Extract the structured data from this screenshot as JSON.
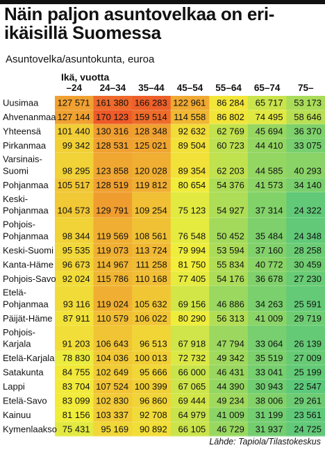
{
  "title": "Näin paljon asuntovelkaa on eri-ikäisillä Suomessa",
  "subtitle": "Asuntovelka/asuntokunta, euroa",
  "source": "Lähde: Tapiola/Tilastokeskus",
  "chart_data": {
    "type": "heatmap",
    "title": "Näin paljon asuntovelkaa on eri-ikäisillä Suomessa",
    "subtitle": "Asuntovelka/asuntokunta, euroa",
    "xlabel": "Ikä, vuotta",
    "columns": [
      "–24",
      "24–34",
      "35–44",
      "45–54",
      "55–64",
      "65–74",
      "75–"
    ],
    "rows": [
      {
        "label": [
          "Uusimaa"
        ],
        "values": [
          "127 571",
          "161 380",
          "166 283",
          "122 961",
          "86 284",
          "65 717",
          "53 173"
        ]
      },
      {
        "label": [
          "Ahvenanmaa"
        ],
        "values": [
          "127 144",
          "170 123",
          "159 514",
          "114 558",
          "86 802",
          "74 495",
          "58 646"
        ]
      },
      {
        "label": [
          "Yhteensä"
        ],
        "values": [
          "101 440",
          "130 316",
          "128 348",
          "92 632",
          "62 769",
          "45 694",
          "36 370"
        ]
      },
      {
        "label": [
          "Pirkanmaa"
        ],
        "values": [
          "99 342",
          "128 531",
          "125 021",
          "89 504",
          "60 723",
          "44 410",
          "33 075"
        ]
      },
      {
        "label": [
          "Varsinais-",
          "Suomi"
        ],
        "values": [
          "98 295",
          "123 858",
          "120 028",
          "89 354",
          "62 203",
          "44 585",
          "40 293"
        ]
      },
      {
        "label": [
          "Pohjanmaa"
        ],
        "values": [
          "105 517",
          "128 519",
          "119 812",
          "80 654",
          "54 376",
          "41 573",
          "34 140"
        ]
      },
      {
        "label": [
          "Keski-",
          "Pohjanmaa"
        ],
        "values": [
          "104 573",
          "129 791",
          "109 254",
          "75 123",
          "54 927",
          "37 314",
          "24 322"
        ]
      },
      {
        "label": [
          "Pohjois-",
          "Pohjanmaa"
        ],
        "values": [
          "98 344",
          "119 569",
          "108 561",
          "76 548",
          "50 452",
          "35 484",
          "24 348"
        ]
      },
      {
        "label": [
          "Keski-Suomi"
        ],
        "values": [
          "95 535",
          "119 073",
          "113 724",
          "79 994",
          "53 594",
          "37 160",
          "28 258"
        ]
      },
      {
        "label": [
          "Kanta-Häme"
        ],
        "values": [
          "96 673",
          "114 967",
          "111 258",
          "81 750",
          "55 834",
          "40 772",
          "30 459"
        ]
      },
      {
        "label": [
          "Pohjois-Savo"
        ],
        "values": [
          "92 024",
          "115 786",
          "110 168",
          "77 405",
          "54 176",
          "36 678",
          "27 230"
        ]
      },
      {
        "label": [
          "Etelä-",
          "Pohjanmaa"
        ],
        "values": [
          "93 116",
          "119 024",
          "105 632",
          "69 156",
          "46 886",
          "34 263",
          "25 591"
        ]
      },
      {
        "label": [
          "Päijät-Häme"
        ],
        "values": [
          "87 911",
          "110 579",
          "106 022",
          "80 290",
          "56 313",
          "41 009",
          "29 719"
        ]
      },
      {
        "label": [
          "Pohjois-",
          "Karjala"
        ],
        "values": [
          "91 203",
          "106 643",
          "96 513",
          "67 918",
          "47 794",
          "33 064",
          "26 139"
        ]
      },
      {
        "label": [
          "Etelä-Karjala"
        ],
        "values": [
          "78 830",
          "104 036",
          "100 013",
          "72 732",
          "49 342",
          "35 519",
          "27 009"
        ]
      },
      {
        "label": [
          "Satakunta"
        ],
        "values": [
          "84 755",
          "102 649",
          "95 666",
          "66 000",
          "46 431",
          "33 041",
          "25 199"
        ]
      },
      {
        "label": [
          "Lappi"
        ],
        "values": [
          "83 704",
          "107 524",
          "100 399",
          "67 065",
          "44 390",
          "30 943",
          "22 547"
        ]
      },
      {
        "label": [
          "Etelä-Savo"
        ],
        "values": [
          "83 099",
          "102 830",
          "96 860",
          "69 444",
          "49 234",
          "38 006",
          "29 261"
        ]
      },
      {
        "label": [
          "Kainuu"
        ],
        "values": [
          "81 156",
          "103 337",
          "92 708",
          "64 979",
          "41 009",
          "31 199",
          "23 561"
        ]
      },
      {
        "label": [
          "Kymenlaakso"
        ],
        "values": [
          "75 431",
          "95 169",
          "90 892",
          "66 105",
          "46 729",
          "31 937",
          "24 725"
        ]
      }
    ],
    "color_scale": {
      "low": "#5cc87a",
      "mid": "#f2ee3a",
      "high": "#ee5a28"
    },
    "grid": false,
    "legend": "none"
  }
}
